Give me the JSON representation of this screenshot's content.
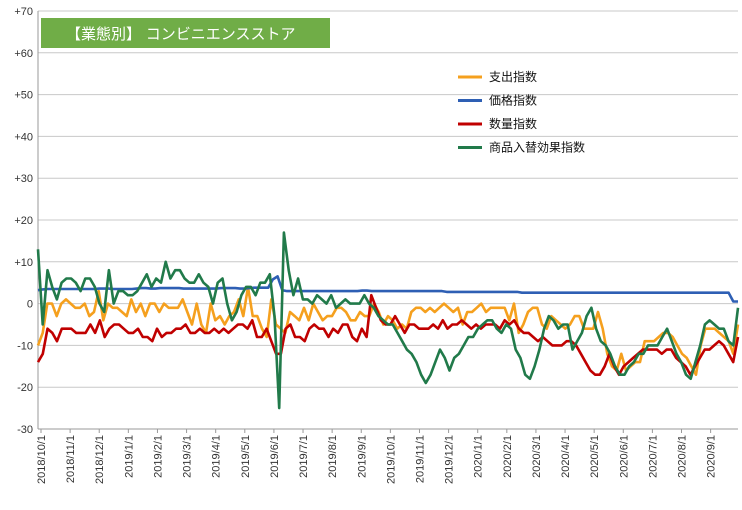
{
  "chart_data": {
    "type": "line",
    "title": "【業態別】 コンビニエンスストア",
    "title_bg": "#70ad47",
    "ylim": [
      -30,
      70
    ],
    "y_ticks": [
      "+70",
      "+60",
      "+50",
      "+40",
      "+30",
      "+20",
      "+10",
      "0",
      "-10",
      "-20",
      "-30"
    ],
    "y_tick_values": [
      70,
      60,
      50,
      40,
      30,
      20,
      10,
      0,
      -10,
      -20,
      -30
    ],
    "x_tick_labels": [
      "2018/10/1",
      "2018/11/1",
      "2018/12/1",
      "2019/1/1",
      "2019/2/1",
      "2019/3/1",
      "2019/4/1",
      "2019/5/1",
      "2019/6/1",
      "2019/7/1",
      "2019/8/1",
      "2019/9/1",
      "2019/10/1",
      "2019/11/1",
      "2019/12/1",
      "2020/1/1",
      "2020/2/1",
      "2020/3/1",
      "2020/4/1",
      "2020/5/1",
      "2020/6/1",
      "2020/7/1",
      "2020/8/1",
      "2020/9/1"
    ],
    "grid": true,
    "legend_position": "top-right",
    "series": [
      {
        "name": "支出指数",
        "color": "#f5a01e",
        "values": [
          -10,
          -7,
          0,
          0,
          -3,
          0,
          1,
          0,
          -1,
          -1,
          0,
          -3,
          -2,
          3,
          -4,
          0,
          -1,
          -1,
          -2,
          -3,
          1,
          -2,
          0,
          -3,
          0,
          0,
          -2,
          0,
          -1,
          -1,
          -1,
          1,
          -2,
          -5,
          0,
          -5,
          -7,
          0,
          -4,
          -3,
          -5,
          -3,
          -2,
          1,
          -3,
          4,
          -3,
          -3,
          -6,
          -8,
          1,
          -5,
          -6,
          -7,
          -2,
          -3,
          -4,
          -1,
          -4,
          0,
          -2,
          -4,
          -3,
          -3,
          -1,
          -1,
          -2,
          -4,
          -4,
          -2,
          -3,
          -3,
          0,
          -2,
          -5,
          -3,
          -4,
          -6,
          -5,
          -6,
          -2,
          -1,
          -1,
          -2,
          -1,
          -2,
          -1,
          0,
          -1,
          -2,
          -1,
          -5,
          -2,
          -2,
          -1,
          0,
          -2,
          -1,
          -1,
          -1,
          -1,
          -4,
          0,
          -7,
          -5,
          -2,
          -1,
          -1,
          -5,
          -6,
          -3,
          -4,
          -5,
          -6,
          -5,
          -3,
          -3,
          -6,
          -6,
          -6,
          -2,
          -6,
          -12,
          -15,
          -16,
          -12,
          -16,
          -15,
          -14,
          -14,
          -9,
          -9,
          -9,
          -8,
          -7,
          -7,
          -8,
          -10,
          -12,
          -13,
          -15,
          -17,
          -10,
          -6,
          -6,
          -6,
          -7,
          -8,
          -9,
          -12,
          -5
        ],
        "values_note": ""
      },
      {
        "name": "価格指数",
        "color": "#2e5fb4",
        "values": [
          3.2,
          3.4,
          3.5,
          3.5,
          3.5,
          3.5,
          3.5,
          3.5,
          3.5,
          3.5,
          3.5,
          3.5,
          3.5,
          3.6,
          3.6,
          3.6,
          3.5,
          3.5,
          3.5,
          3.5,
          3.5,
          3.6,
          3.7,
          3.7,
          3.6,
          3.6,
          3.7,
          3.7,
          3.7,
          3.7,
          3.7,
          3.6,
          3.6,
          3.6,
          3.6,
          3.6,
          3.6,
          3.6,
          3.6,
          3.7,
          3.7,
          3.7,
          3.7,
          3.6,
          3.6,
          3.7,
          3.8,
          3.8,
          3.8,
          3.8,
          5.8,
          6.5,
          3.2,
          3.0,
          3.0,
          3.0,
          3.0,
          3.0,
          3.0,
          3.0,
          3.0,
          3.0,
          3.0,
          3.0,
          3.0,
          3.0,
          3.0,
          3.0,
          3.0,
          3.1,
          3.1,
          3.0,
          3.0,
          3.0,
          3.0,
          3.0,
          3.0,
          3.0,
          3.0,
          3.0,
          3.0,
          3.0,
          3.0,
          3.0,
          3.0,
          3.0,
          3.0,
          2.8,
          2.8,
          2.8,
          2.8,
          2.8,
          2.8,
          2.8,
          2.8,
          2.8,
          2.8,
          2.8,
          2.8,
          2.8,
          2.8,
          2.8,
          2.8,
          2.6,
          2.6,
          2.6,
          2.6,
          2.6,
          2.6,
          2.6,
          2.6,
          2.6,
          2.6,
          2.6,
          2.6,
          2.6,
          2.6,
          2.6,
          2.6,
          2.6,
          2.6,
          2.6,
          2.6,
          2.6,
          2.6,
          2.6,
          2.6,
          2.6,
          2.6,
          2.6,
          2.6,
          2.6,
          2.6,
          2.6,
          2.6,
          2.6,
          2.6,
          2.6,
          2.6,
          2.6,
          2.6,
          2.6,
          2.6,
          2.6,
          2.6,
          2.6,
          2.6,
          2.6,
          0.5,
          0.5
        ]
      },
      {
        "name": "数量指数",
        "color": "#c00000",
        "values": [
          -14,
          -12,
          -6,
          -7,
          -9,
          -6,
          -6,
          -6,
          -7,
          -7,
          -7,
          -5,
          -7,
          -4,
          -8,
          -6,
          -5,
          -5,
          -6,
          -7,
          -7,
          -6,
          -8,
          -8,
          -9,
          -6,
          -8,
          -7,
          -7,
          -6,
          -6,
          -5,
          -7,
          -7,
          -6,
          -7,
          -7,
          -6,
          -7,
          -6,
          -7,
          -6,
          -5,
          -5,
          -6,
          -4,
          -8,
          -8,
          -6,
          -9,
          -12,
          -12,
          -6,
          -5,
          -8,
          -8,
          -9,
          -6,
          -5,
          -6,
          -6,
          -8,
          -6,
          -7,
          -5,
          -5,
          -8,
          -9,
          -6,
          -8,
          2,
          -1,
          -4,
          -5,
          -5,
          -3,
          -5,
          -7,
          -5,
          -5,
          -6,
          -6,
          -6,
          -5,
          -6,
          -4,
          -6,
          -5,
          -5,
          -4,
          -5,
          -6,
          -5,
          -6,
          -5,
          -5,
          -5,
          -6,
          -4,
          -5,
          -4,
          -6,
          -7,
          -7,
          -8,
          -9,
          -8,
          -9,
          -10,
          -10,
          -10,
          -9,
          -9,
          -10,
          -12,
          -14,
          -16,
          -17,
          -17,
          -15,
          -12,
          -15,
          -17,
          -15,
          -14,
          -13,
          -12,
          -11,
          -11,
          -11,
          -11,
          -12,
          -11,
          -11,
          -13,
          -14,
          -15,
          -17,
          -15,
          -13,
          -11,
          -11,
          -10,
          -9,
          -10,
          -12,
          -14,
          -8
        ],
        "values_note": ""
      },
      {
        "name": "商品入替効果指数",
        "color": "#217a4a",
        "values": [
          13,
          -5,
          8,
          4,
          1,
          5,
          6,
          6,
          5,
          3,
          6,
          6,
          4,
          0,
          -2,
          8,
          0,
          3,
          3,
          2,
          2,
          3,
          5,
          7,
          4,
          6,
          5,
          10,
          6,
          8,
          8,
          6,
          5,
          5,
          7,
          5,
          4,
          0,
          5,
          6,
          0,
          -4,
          -2,
          2,
          4,
          4,
          2,
          5,
          5,
          7,
          -3,
          -25,
          17,
          8,
          2,
          6,
          1,
          1,
          0,
          2,
          1,
          0,
          2,
          -1,
          0,
          1,
          0,
          0,
          0,
          2,
          0,
          -1,
          -3,
          -4,
          -5,
          -5,
          -7,
          -9,
          -11,
          -12,
          -14,
          -17,
          -19,
          -17,
          -14,
          -11,
          -13,
          -16,
          -13,
          -12,
          -10,
          -8,
          -8,
          -6,
          -5,
          -4,
          -4,
          -6,
          -7,
          -5,
          -6,
          -11,
          -13,
          -17,
          -18,
          -15,
          -11,
          -6,
          -3,
          -4,
          -6,
          -5,
          -5,
          -11,
          -9,
          -7,
          -3,
          -1,
          -6,
          -9,
          -10,
          -12,
          -15,
          -17,
          -17,
          -15,
          -14,
          -12,
          -12,
          -10,
          -10,
          -10,
          -8,
          -6,
          -9,
          -12,
          -14,
          -17,
          -18,
          -14,
          -10,
          -5,
          -4,
          -5,
          -6,
          -6,
          -9,
          -10,
          -1
        ]
      }
    ]
  }
}
